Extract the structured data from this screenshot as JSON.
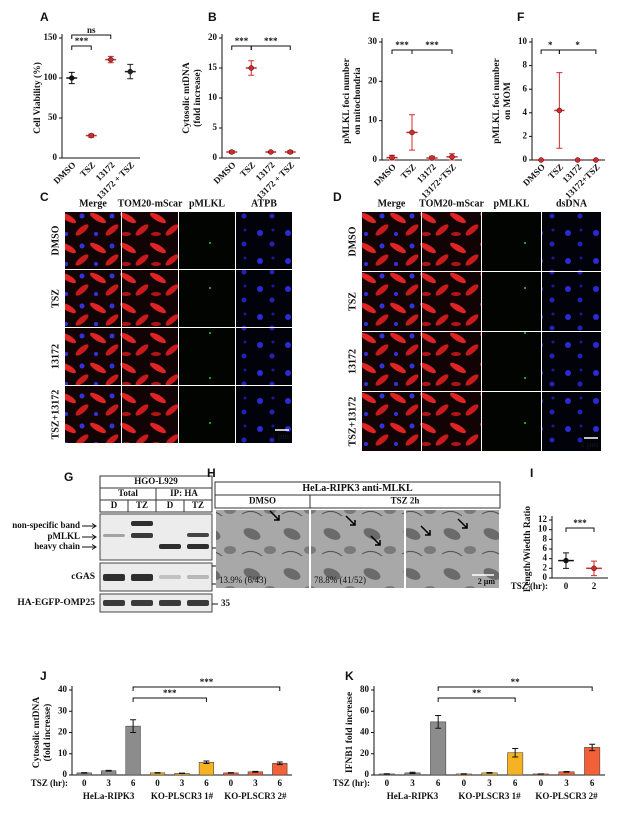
{
  "chart_data": [
    {
      "label": "A",
      "type": "dot",
      "ylabel": [
        "Cell Viability (%)"
      ],
      "categories": [
        "DMSO",
        "TSZ",
        "13172",
        "13172 + TSZ"
      ],
      "values": [
        100,
        28,
        123,
        108
      ],
      "errors": [
        7,
        2,
        4,
        9
      ],
      "colors": [
        "#111111",
        "#d42a2a",
        "#c23030",
        "#222222"
      ],
      "ylim": [
        0,
        150
      ],
      "yticks": [
        0,
        50,
        100,
        150
      ],
      "annotations": [
        {
          "text": "***",
          "compare": [
            0,
            1
          ]
        },
        {
          "text": "ns",
          "compare": [
            0,
            2
          ]
        }
      ]
    },
    {
      "label": "B",
      "type": "dot",
      "ylabel": [
        "Cytosolic mtDNA",
        "(fold increase)"
      ],
      "categories": [
        "DMSO",
        "TSZ",
        "13172",
        "13172 + TSZ"
      ],
      "values": [
        1,
        15,
        1,
        1
      ],
      "errors": [
        0.2,
        1.2,
        0.1,
        0.2
      ],
      "colors": [
        "#d42a2a",
        "#d42a2a",
        "#d42a2a",
        "#d42a2a"
      ],
      "ylim": [
        0,
        20
      ],
      "yticks": [
        0,
        5,
        10,
        15,
        20
      ],
      "annotations": [
        {
          "text": "***",
          "compare": [
            0,
            1
          ]
        },
        {
          "text": "***",
          "compare": [
            1,
            3
          ]
        }
      ]
    },
    {
      "label": "E",
      "type": "dot",
      "ylabel": [
        "pMLKL foci number",
        "on mitochondria"
      ],
      "categories": [
        "DMSO",
        "TSZ",
        "13172",
        "13172+TSZ"
      ],
      "values": [
        0.6,
        7,
        0.5,
        0.8
      ],
      "errors": [
        0.6,
        4.5,
        0.5,
        0.8
      ],
      "colors": [
        "#d42a2a",
        "#d42a2a",
        "#d42a2a",
        "#d42a2a"
      ],
      "ylim": [
        0,
        30
      ],
      "yticks": [
        0,
        10,
        20,
        30
      ],
      "annotations": [
        {
          "text": "***",
          "compare": [
            0,
            1
          ]
        },
        {
          "text": "***",
          "compare": [
            1,
            3
          ]
        }
      ]
    },
    {
      "label": "F",
      "type": "dot",
      "ylabel": [
        "pMLKL foci number",
        "on MOM"
      ],
      "categories": [
        "DMSO",
        "TSZ",
        "13172",
        "13172+TSZ"
      ],
      "values": [
        0,
        4.2,
        0,
        0
      ],
      "errors": [
        0,
        3.2,
        0,
        0
      ],
      "colors": [
        "#d42a2a",
        "#d42a2a",
        "#d42a2a",
        "#d42a2a"
      ],
      "ylim": [
        0,
        10
      ],
      "yticks": [
        0,
        2,
        4,
        6,
        8,
        10
      ],
      "annotations": [
        {
          "text": "*",
          "compare": [
            0,
            1
          ]
        },
        {
          "text": "*",
          "compare": [
            1,
            3
          ]
        }
      ]
    },
    {
      "label": "I",
      "type": "dot",
      "ylabel": [
        "Length/Wiedth Ratio"
      ],
      "categories": [
        "0",
        "2"
      ],
      "xlabel": "TSZ (hr):",
      "values": [
        3.6,
        2
      ],
      "errors": [
        1.6,
        1.5
      ],
      "colors": [
        "#111111",
        "#d42a2a"
      ],
      "ylim": [
        0,
        12
      ],
      "yticks": [
        0,
        2,
        4,
        6,
        8,
        10,
        12
      ],
      "annotations": [
        {
          "text": "***",
          "compare": [
            0,
            1
          ]
        }
      ]
    },
    {
      "label": "J",
      "type": "bar",
      "ylabel": [
        "Cytosolic mtDNA",
        "(fold increase)"
      ],
      "categories": [
        "0",
        "3",
        "6",
        "0",
        "3",
        "6",
        "0",
        "3",
        "6"
      ],
      "groups": [
        "HeLa-RIPK3",
        "KO-PLSCR3 1#",
        "KO-PLSCR3 2#"
      ],
      "xlabel": "TSZ (hr):",
      "values": [
        1,
        2,
        23,
        1,
        0.8,
        6,
        1,
        1.5,
        5.5
      ],
      "errors": [
        0.1,
        0.2,
        3,
        0.1,
        0.1,
        0.6,
        0.1,
        0.2,
        0.6
      ],
      "colors": [
        "#8c8c8c",
        "#8c8c8c",
        "#8c8c8c",
        "#f5b324",
        "#f5b324",
        "#f5b324",
        "#f2603a",
        "#f2603a",
        "#f2603a"
      ],
      "ylim": [
        0,
        40
      ],
      "yticks": [
        0,
        10,
        20,
        30,
        40
      ],
      "annotations": [
        {
          "text": "***",
          "compare": [
            2,
            5
          ]
        },
        {
          "text": "***",
          "compare": [
            2,
            8
          ]
        }
      ]
    },
    {
      "label": "K",
      "type": "bar",
      "ylabel": [
        "IFNB1 fold increase"
      ],
      "categories": [
        "0",
        "3",
        "6",
        "0",
        "3",
        "6",
        "0",
        "3",
        "6"
      ],
      "groups": [
        "HeLa-RIPK3",
        "KO-PLSCR3 1#",
        "KO-PLSCR3 2#"
      ],
      "xlabel": "TSZ (hr):",
      "values": [
        1,
        2,
        50,
        1,
        2,
        21,
        1,
        3,
        26
      ],
      "errors": [
        0.2,
        0.6,
        6,
        0.2,
        0.4,
        4,
        0.1,
        0.3,
        3
      ],
      "colors": [
        "#8c8c8c",
        "#8c8c8c",
        "#8c8c8c",
        "#f5b324",
        "#f5b324",
        "#f5b324",
        "#f2603a",
        "#f2603a",
        "#f2603a"
      ],
      "ylim": [
        0,
        80
      ],
      "yticks": [
        0,
        20,
        40,
        60,
        80
      ],
      "annotations": [
        {
          "text": "**",
          "compare": [
            2,
            5
          ]
        },
        {
          "text": "**",
          "compare": [
            2,
            8
          ]
        }
      ]
    }
  ],
  "figure": {
    "C": {
      "label": "C",
      "columns": [
        {
          "label": "Merge",
          "color": "#000000"
        },
        {
          "label": "TOM20-mScar",
          "color": "#e00000"
        },
        {
          "label": "pMLKL",
          "color": "#18b018"
        },
        {
          "label": "ATPB",
          "color": "#1a1ae0"
        }
      ],
      "rows": [
        "DMSO",
        "TSZ",
        "13172",
        "TSZ+13172"
      ],
      "scale": "1 μm"
    },
    "D": {
      "label": "D",
      "columns": [
        {
          "label": "Merge",
          "color": "#000000"
        },
        {
          "label": "TOM20-mScar",
          "color": "#e00000"
        },
        {
          "label": "pMLKL",
          "color": "#18b018"
        },
        {
          "label": "dsDNA",
          "color": "#1a1ae0"
        }
      ],
      "rows": [
        "DMSO",
        "TSZ",
        "13172",
        "TSZ+13172"
      ],
      "scale": "1 μm"
    },
    "G": {
      "label": "G",
      "title": "HGO-L929",
      "groups": [
        "Total",
        "IP: HA"
      ],
      "lanes": [
        "D",
        "TZ",
        "D",
        "TZ"
      ],
      "bands": [
        "non-specific band",
        "pMLKL",
        "heavy chain"
      ],
      "blots": [
        "cGAS",
        "HA-EGFP-OMP25"
      ],
      "markers": [
        55,
        70,
        55,
        35
      ]
    },
    "H": {
      "label": "H",
      "title": "HeLa-RIPK3 anti-MLKL",
      "conditions": [
        "DMSO",
        "TSZ 2h"
      ],
      "notes": [
        "13.9% (6/43)",
        "78.8% (41/52)"
      ],
      "scale": "2 μm"
    }
  }
}
